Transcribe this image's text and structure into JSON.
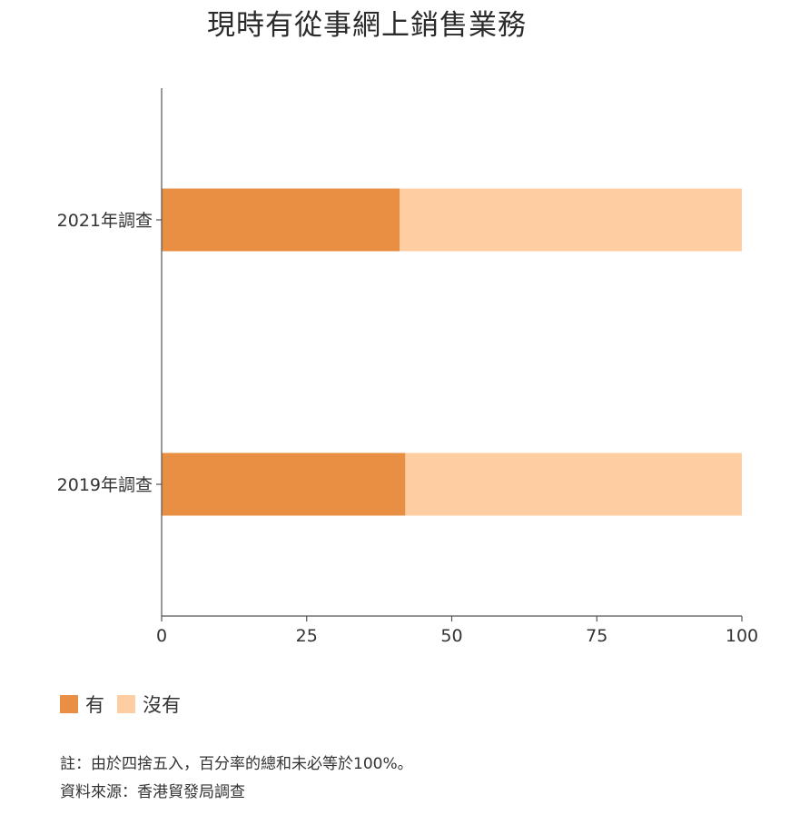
{
  "chart_data": {
    "type": "bar",
    "orientation": "horizontal",
    "stacked": true,
    "title": "現時有從事網上銷售業務",
    "categories": [
      "2021年調查",
      "2019年調查"
    ],
    "series": [
      {
        "name": "有",
        "values": [
          41,
          42
        ],
        "color": "#E98F43"
      },
      {
        "name": "沒有",
        "values": [
          59,
          58
        ],
        "color": "#FFCDA2"
      }
    ],
    "xlim": [
      0,
      100
    ],
    "xticks": [
      0,
      25,
      50,
      75,
      100
    ],
    "xlabel": "",
    "ylabel": "",
    "grid": false,
    "legend_position": "bottom-left"
  },
  "notes": {
    "rounding": "註：由於四捨五入，百分率的總和未必等於100%。",
    "source": "資料來源：香港貿發局調查"
  }
}
